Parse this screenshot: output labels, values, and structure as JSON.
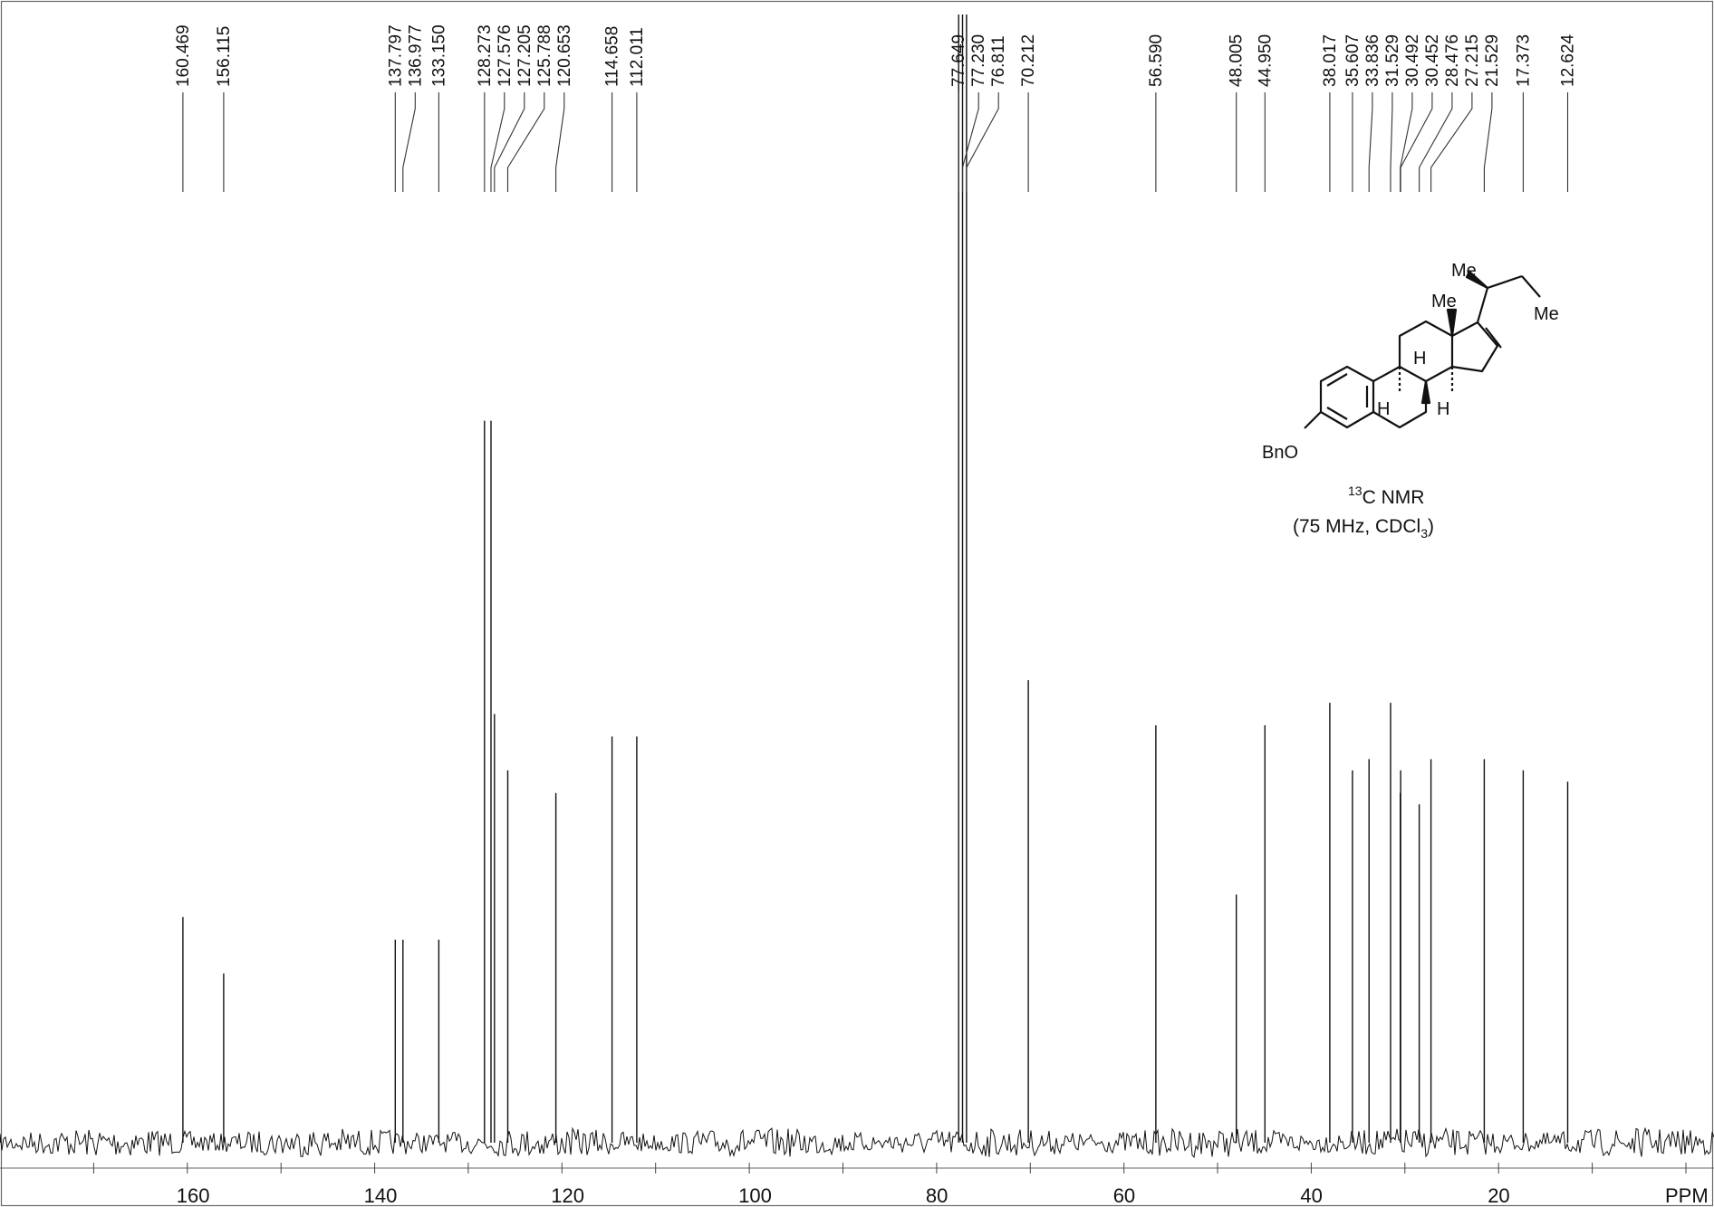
{
  "chart_data": {
    "type": "line",
    "title": "",
    "xlabel": "PPM",
    "ylabel": "",
    "xlim": [
      180,
      -3
    ],
    "x_reversed": true,
    "x_ticks": [
      160,
      140,
      120,
      100,
      80,
      60,
      40,
      20
    ],
    "x_tick_labels": [
      "160",
      "140",
      "120",
      "100",
      "80",
      "60",
      "40",
      "20"
    ],
    "grid": false,
    "peaks": [
      {
        "ppm": 160.469,
        "label": "160.469",
        "intensity": 0.2
      },
      {
        "ppm": 156.115,
        "label": "156.115",
        "intensity": 0.15
      },
      {
        "ppm": 137.797,
        "label": "137.797",
        "intensity": 0.18
      },
      {
        "ppm": 136.977,
        "label": "136.977",
        "intensity": 0.18
      },
      {
        "ppm": 133.15,
        "label": "133.150",
        "intensity": 0.18
      },
      {
        "ppm": 128.273,
        "label": "128.273",
        "intensity": 0.64
      },
      {
        "ppm": 127.576,
        "label": "127.576",
        "intensity": 0.64
      },
      {
        "ppm": 127.205,
        "label": "127.205",
        "intensity": 0.38
      },
      {
        "ppm": 125.788,
        "label": "125.788",
        "intensity": 0.33
      },
      {
        "ppm": 120.653,
        "label": "120.653",
        "intensity": 0.31
      },
      {
        "ppm": 114.658,
        "label": "114.658",
        "intensity": 0.36
      },
      {
        "ppm": 112.011,
        "label": "112.011",
        "intensity": 0.36
      },
      {
        "ppm": 77.649,
        "label": "77.649",
        "intensity": 1.0
      },
      {
        "ppm": 77.23,
        "label": "77.230",
        "intensity": 1.0
      },
      {
        "ppm": 76.811,
        "label": "76.811",
        "intensity": 1.0
      },
      {
        "ppm": 70.212,
        "label": "70.212",
        "intensity": 0.41
      },
      {
        "ppm": 56.59,
        "label": "56.590",
        "intensity": 0.37
      },
      {
        "ppm": 48.005,
        "label": "48.005",
        "intensity": 0.22
      },
      {
        "ppm": 44.95,
        "label": "44.950",
        "intensity": 0.37
      },
      {
        "ppm": 38.017,
        "label": "38.017",
        "intensity": 0.39
      },
      {
        "ppm": 35.607,
        "label": "35.607",
        "intensity": 0.33
      },
      {
        "ppm": 33.836,
        "label": "33.836",
        "intensity": 0.34
      },
      {
        "ppm": 31.529,
        "label": "31.529",
        "intensity": 0.39
      },
      {
        "ppm": 30.492,
        "label": "30.492",
        "intensity": 0.31
      },
      {
        "ppm": 30.452,
        "label": "30.452",
        "intensity": 0.33
      },
      {
        "ppm": 28.476,
        "label": "28.476",
        "intensity": 0.3
      },
      {
        "ppm": 27.215,
        "label": "27.215",
        "intensity": 0.34
      },
      {
        "ppm": 21.529,
        "label": "21.529",
        "intensity": 0.34
      },
      {
        "ppm": 17.373,
        "label": "17.373",
        "intensity": 0.33
      },
      {
        "ppm": 12.624,
        "label": "12.624",
        "intensity": 0.32
      }
    ]
  },
  "structure": {
    "me_top": "Me",
    "me_right": "Me",
    "me_angular": "Me",
    "h_1": "H",
    "h_2": "H",
    "h_3": "H",
    "bno": "BnO"
  },
  "caption": {
    "nucleus_sup": "13",
    "nucleus": "C NMR",
    "conditions_pre": "(75 MHz, CDCl",
    "conditions_sub": "3",
    "conditions_post": ")"
  }
}
